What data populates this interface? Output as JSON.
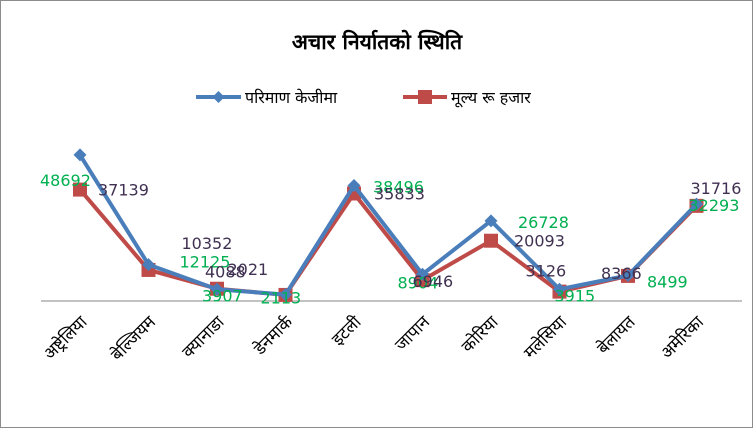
{
  "chart_data": {
    "type": "line",
    "title": "अचार निर्यातको स्थिति",
    "categories": [
      "अष्ट्रेलिया",
      "बेल्जियम",
      "क्यानाडा",
      "डेनमार्क",
      "इटली",
      "जापान",
      "कोरिया",
      "मलेसिया",
      "बेलायत",
      "अमेरिका"
    ],
    "series": [
      {
        "name": "परिमाण केजीमा",
        "color": "#4a7ebb",
        "marker": "diamond",
        "values": [
          48692,
          12125,
          3907,
          2113,
          38496,
          8904,
          26728,
          3915,
          8499,
          32293
        ],
        "labels": [
          "48692",
          "12125",
          "3907",
          "2113",
          "38496",
          "8904",
          "26728",
          "3915",
          "8499",
          "32293"
        ],
        "label_color": "#00b050"
      },
      {
        "name": "मूल्य रू हजार",
        "color": "#be4b48",
        "marker": "square",
        "values": [
          37139,
          10352,
          4088,
          2021,
          35833,
          6946,
          20093,
          3126,
          8366,
          31716
        ],
        "labels": [
          "37139",
          "10352",
          "4088",
          "2021",
          "35833",
          "6946",
          "20093",
          "3126",
          "8366",
          "31716"
        ],
        "label_color": "#403152"
      }
    ],
    "legend_position": "top",
    "grid": false,
    "xlabel": "",
    "ylabel": ""
  }
}
